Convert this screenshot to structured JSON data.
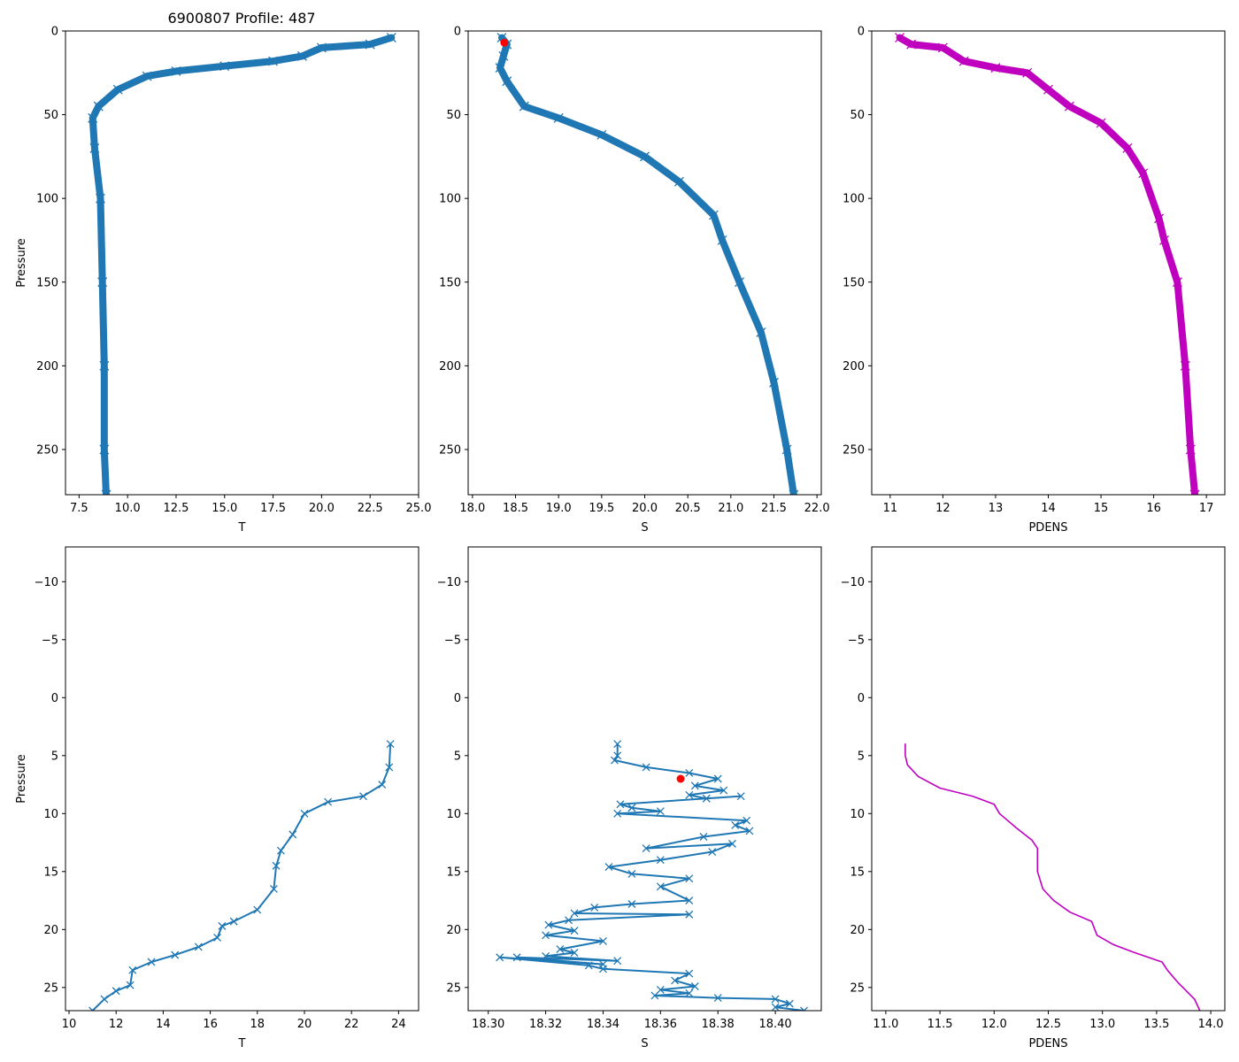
{
  "figure_title": "6900807 Profile: 487",
  "colors": {
    "blue": "#1f77b4",
    "magenta": "#bf00bf",
    "red": "#ff0000"
  },
  "chart_data": [
    {
      "id": "t_full",
      "type": "line",
      "marker": "x",
      "color": "blue",
      "xlabel": "T",
      "ylabel": "Pressure",
      "xlim": [
        6.8,
        25.0
      ],
      "ylim": [
        277,
        0
      ],
      "xticks": [
        7.5,
        10.0,
        12.5,
        15.0,
        17.5,
        20.0,
        22.5,
        25.0
      ],
      "xtick_labels": [
        "7.5",
        "10.0",
        "12.5",
        "15.0",
        "17.5",
        "20.0",
        "22.5",
        "25.0"
      ],
      "yticks": [
        0,
        50,
        100,
        150,
        200,
        250
      ],
      "ytick_labels": [
        "0",
        "50",
        "100",
        "150",
        "200",
        "250"
      ],
      "series": [
        {
          "name": "T",
          "x": [
            23.6,
            22.5,
            20.0,
            19.0,
            17.5,
            15.0,
            12.5,
            11.0,
            9.5,
            8.5,
            8.2,
            8.3,
            8.6,
            8.7,
            8.8,
            8.8,
            8.9
          ],
          "y": [
            4,
            8,
            10,
            15,
            18,
            21,
            24,
            27,
            35,
            45,
            52,
            70,
            100,
            150,
            200,
            250,
            277
          ]
        }
      ]
    },
    {
      "id": "s_full",
      "type": "line",
      "marker": "x",
      "color": "blue",
      "xlabel": "S",
      "ylabel": "",
      "xlim": [
        17.95,
        22.05
      ],
      "ylim": [
        277,
        0
      ],
      "xticks": [
        18.0,
        18.5,
        19.0,
        19.5,
        20.0,
        20.5,
        21.0,
        21.5,
        22.0
      ],
      "xtick_labels": [
        "18.0",
        "18.5",
        "19.0",
        "19.5",
        "20.0",
        "20.5",
        "21.0",
        "21.5",
        "22.0"
      ],
      "yticks": [
        0,
        50,
        100,
        150,
        200,
        250
      ],
      "ytick_labels": [
        "0",
        "50",
        "100",
        "150",
        "200",
        "250"
      ],
      "series": [
        {
          "name": "S",
          "x": [
            18.34,
            18.4,
            18.36,
            18.32,
            18.4,
            18.6,
            19.0,
            19.5,
            20.0,
            20.4,
            20.8,
            20.9,
            21.1,
            21.35,
            21.5,
            21.65,
            21.73
          ],
          "y": [
            4,
            8,
            15,
            22,
            30,
            45,
            52,
            62,
            75,
            90,
            110,
            125,
            150,
            180,
            210,
            250,
            277
          ]
        }
      ],
      "highlight": {
        "x": 18.37,
        "y": 7,
        "color": "red"
      }
    },
    {
      "id": "pd_full",
      "type": "line",
      "marker": "x",
      "color": "magenta",
      "xlabel": "PDENS",
      "ylabel": "",
      "xlim": [
        10.65,
        17.35
      ],
      "ylim": [
        277,
        0
      ],
      "xticks": [
        11,
        12,
        13,
        14,
        15,
        16,
        17
      ],
      "xtick_labels": [
        "11",
        "12",
        "13",
        "14",
        "15",
        "16",
        "17"
      ],
      "yticks": [
        0,
        50,
        100,
        150,
        200,
        250
      ],
      "ytick_labels": [
        "0",
        "50",
        "100",
        "150",
        "200",
        "250"
      ],
      "series": [
        {
          "name": "PDENS",
          "x": [
            11.18,
            11.4,
            12.0,
            12.4,
            13.0,
            13.6,
            14.0,
            14.4,
            15.0,
            15.5,
            15.8,
            16.1,
            16.2,
            16.45,
            16.6,
            16.7,
            16.78
          ],
          "y": [
            4,
            8,
            10,
            18,
            22,
            25,
            35,
            45,
            55,
            70,
            85,
            112,
            125,
            150,
            200,
            250,
            277
          ]
        }
      ]
    },
    {
      "id": "t_zoom",
      "type": "line",
      "marker": "x",
      "color": "blue",
      "xlabel": "T",
      "ylabel": "Pressure",
      "xlim": [
        9.85,
        24.85
      ],
      "ylim": [
        27,
        -13
      ],
      "xticks": [
        10,
        12,
        14,
        16,
        18,
        20,
        22,
        24
      ],
      "xtick_labels": [
        "10",
        "12",
        "14",
        "16",
        "18",
        "20",
        "22",
        "24"
      ],
      "yticks": [
        -10,
        -5,
        0,
        5,
        10,
        15,
        20,
        25
      ],
      "ytick_labels": [
        "−10",
        "−5",
        "0",
        "5",
        "10",
        "15",
        "20",
        "25"
      ],
      "series": [
        {
          "name": "T",
          "x": [
            23.65,
            23.6,
            23.3,
            22.5,
            21.0,
            20.0,
            19.5,
            19.0,
            18.8,
            18.7,
            18.0,
            17.0,
            16.5,
            16.3,
            15.5,
            14.5,
            13.5,
            12.7,
            12.6,
            12.0,
            11.5,
            11.0
          ],
          "y": [
            4.0,
            6.0,
            7.5,
            8.5,
            9.0,
            10.0,
            11.8,
            13.2,
            14.5,
            16.5,
            18.3,
            19.3,
            19.7,
            20.7,
            21.5,
            22.2,
            22.8,
            23.5,
            24.8,
            25.3,
            26.0,
            27.0
          ]
        }
      ]
    },
    {
      "id": "s_zoom",
      "type": "line",
      "marker": "x",
      "color": "blue",
      "xlabel": "S",
      "ylabel": "",
      "xlim": [
        18.293,
        18.416
      ],
      "ylim": [
        27,
        -13
      ],
      "xticks": [
        18.3,
        18.32,
        18.34,
        18.36,
        18.38,
        18.4
      ],
      "xtick_labels": [
        "18.30",
        "18.32",
        "18.34",
        "18.36",
        "18.38",
        "18.40"
      ],
      "yticks": [
        -10,
        -5,
        0,
        5,
        10,
        15,
        20,
        25
      ],
      "ytick_labels": [
        "−10",
        "−5",
        "0",
        "5",
        "10",
        "15",
        "20",
        "25"
      ],
      "series": [
        {
          "name": "S",
          "x": [
            18.345,
            18.345,
            18.344,
            18.355,
            18.37,
            18.38,
            18.372,
            18.382,
            18.37,
            18.376,
            18.388,
            18.346,
            18.35,
            18.36,
            18.345,
            18.39,
            18.386,
            18.391,
            18.375,
            18.355,
            18.385,
            18.378,
            18.36,
            18.342,
            18.35,
            18.37,
            18.36,
            18.37,
            18.35,
            18.337,
            18.33,
            18.37,
            18.328,
            18.321,
            18.33,
            18.32,
            18.34,
            18.325,
            18.33,
            18.32,
            18.345,
            18.31,
            18.34,
            18.304,
            18.335,
            18.34,
            18.37,
            18.365,
            18.372,
            18.36,
            18.37,
            18.358,
            18.38,
            18.4,
            18.405,
            18.4,
            18.41
          ],
          "y": [
            4.0,
            5.0,
            5.4,
            6.0,
            6.5,
            7.0,
            7.6,
            8.0,
            8.4,
            8.7,
            8.5,
            9.2,
            9.5,
            9.8,
            10.0,
            10.6,
            11.0,
            11.5,
            12.0,
            13.0,
            12.6,
            13.3,
            14.0,
            14.6,
            15.2,
            15.6,
            16.3,
            17.5,
            17.8,
            18.1,
            18.6,
            18.7,
            19.2,
            19.6,
            20.1,
            20.5,
            21.0,
            21.7,
            22.0,
            22.3,
            22.7,
            22.4,
            23.0,
            22.4,
            23.1,
            23.4,
            23.8,
            24.4,
            24.9,
            25.2,
            25.5,
            25.7,
            25.9,
            26.0,
            26.4,
            26.7,
            27.0
          ]
        }
      ],
      "highlight": {
        "x": 18.367,
        "y": 7.0,
        "color": "red"
      }
    },
    {
      "id": "pd_zoom",
      "type": "line",
      "marker": "none",
      "color": "magenta",
      "xlabel": "PDENS",
      "ylabel": "",
      "xlim": [
        10.87,
        14.13
      ],
      "ylim": [
        27,
        -13
      ],
      "xticks": [
        11.0,
        11.5,
        12.0,
        12.5,
        13.0,
        13.5,
        14.0
      ],
      "xtick_labels": [
        "11.0",
        "11.5",
        "12.0",
        "12.5",
        "13.0",
        "13.5",
        "14.0"
      ],
      "yticks": [
        -10,
        -5,
        0,
        5,
        10,
        15,
        20,
        25
      ],
      "ytick_labels": [
        "−10",
        "−5",
        "0",
        "5",
        "10",
        "15",
        "20",
        "25"
      ],
      "series": [
        {
          "name": "PDENS",
          "x": [
            11.18,
            11.18,
            11.2,
            11.3,
            11.5,
            11.8,
            12.0,
            12.05,
            12.2,
            12.35,
            12.4,
            12.4,
            12.45,
            12.55,
            12.7,
            12.9,
            12.95,
            13.1,
            13.3,
            13.55,
            13.6,
            13.7,
            13.85,
            13.9
          ],
          "y": [
            4.0,
            5.0,
            5.8,
            6.8,
            7.8,
            8.5,
            9.2,
            10.0,
            11.2,
            12.3,
            13.0,
            15.0,
            16.5,
            17.5,
            18.5,
            19.3,
            20.5,
            21.3,
            22.0,
            22.8,
            23.5,
            24.6,
            26.0,
            27.0
          ]
        }
      ]
    }
  ]
}
